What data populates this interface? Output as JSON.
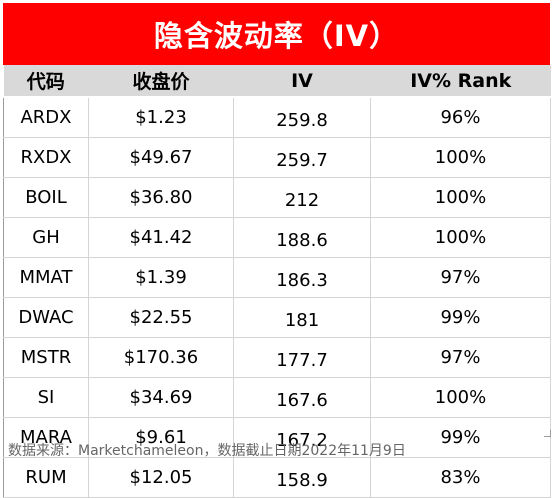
{
  "title": "隐含波动率（IV）",
  "headers": {
    "ticker": "代码",
    "price": "收盘价",
    "iv": "IV",
    "rank": "IV% Rank"
  },
  "rows": [
    {
      "ticker": "ARDX",
      "price": "$1.23",
      "iv": "259.8",
      "rank": "96%"
    },
    {
      "ticker": "RXDX",
      "price": "$49.67",
      "iv": "259.7",
      "rank": "100%"
    },
    {
      "ticker": "BOIL",
      "price": "$36.80",
      "iv": "212",
      "rank": "100%"
    },
    {
      "ticker": "GH",
      "price": "$41.42",
      "iv": "188.6",
      "rank": "100%"
    },
    {
      "ticker": "MMAT",
      "price": "$1.39",
      "iv": "186.3",
      "rank": "97%"
    },
    {
      "ticker": "DWAC",
      "price": "$22.55",
      "iv": "181",
      "rank": "99%"
    },
    {
      "ticker": "MSTR",
      "price": "$170.36",
      "iv": "177.7",
      "rank": "97%"
    },
    {
      "ticker": "SI",
      "price": "$34.69",
      "iv": "167.6",
      "rank": "100%"
    },
    {
      "ticker": "MARA",
      "price": "$9.61",
      "iv": "167.2",
      "rank": "99%"
    },
    {
      "ticker": "RUM",
      "price": "$12.05",
      "iv": "158.9",
      "rank": "83%"
    }
  ],
  "source": "数据来源：Marketchameleon，数据截止日期2022年11月9日",
  "colors": {
    "title_bg": "#ff0000",
    "title_text": "#ffffff",
    "header_bg": "#d9d9d9"
  }
}
